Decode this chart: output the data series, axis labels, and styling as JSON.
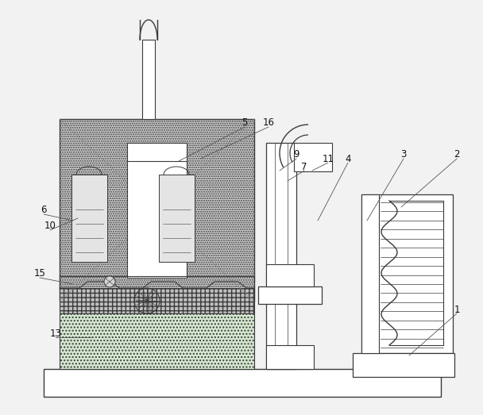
{
  "bg": "#f2f2f2",
  "lc": "#3a3a3a",
  "white": "#ffffff",
  "fill_dark": "#c8c8c8",
  "fill_medium": "#d8d8d8",
  "fill_light": "#ddeedd",
  "label_color": "#111111",
  "leader_color": "#555555",
  "labels": [
    [
      "1",
      575,
      133,
      515,
      75
    ],
    [
      "2",
      575,
      328,
      505,
      262
    ],
    [
      "3",
      508,
      328,
      462,
      245
    ],
    [
      "4",
      438,
      323,
      400,
      245
    ],
    [
      "5",
      308,
      368,
      225,
      320
    ],
    [
      "6",
      55,
      258,
      92,
      245
    ],
    [
      "7",
      383,
      313,
      362,
      295
    ],
    [
      "9",
      373,
      328,
      352,
      308
    ],
    [
      "10",
      63,
      238,
      98,
      248
    ],
    [
      "11",
      413,
      323,
      393,
      308
    ],
    [
      "13",
      70,
      103,
      115,
      98
    ],
    [
      "15",
      50,
      178,
      92,
      165
    ],
    [
      "16",
      338,
      368,
      252,
      323
    ]
  ]
}
